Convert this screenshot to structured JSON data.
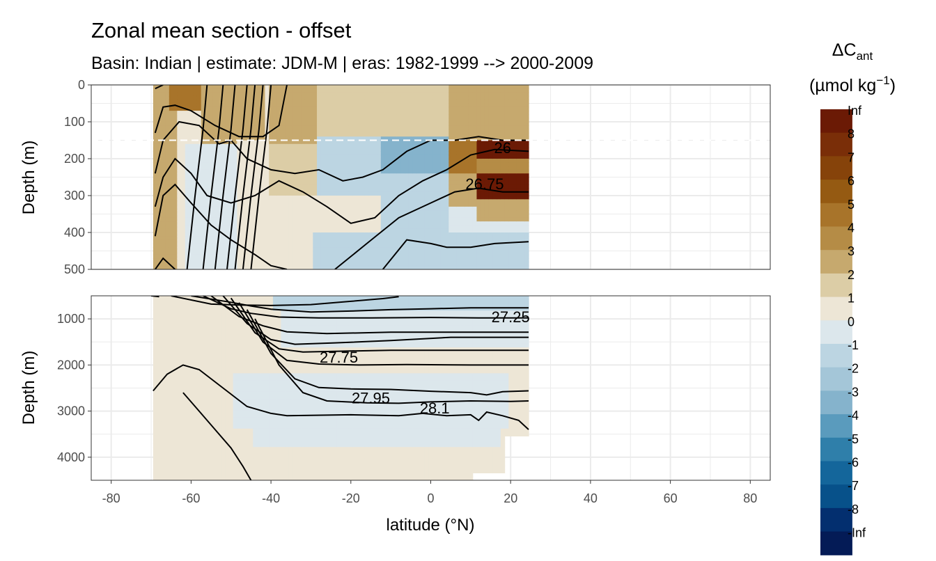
{
  "title": "Zonal mean section - offset",
  "subtitle": "Basin: Indian | estimate: JDM-M | eras: 1982-1999 --> 2000-2009",
  "chart_data": {
    "type": "heatmap",
    "description_kind": "filled contour ocean section with isopycnal contour lines",
    "xlabel": "latitude (°N)",
    "ylabel": "Depth (m)",
    "xlim": [
      -85,
      85
    ],
    "x_ticks": [
      -80,
      -60,
      -40,
      -20,
      0,
      20,
      40,
      60,
      80
    ],
    "x_tick_labels": [
      "-80",
      "-60",
      "-40",
      "-20",
      "0",
      "20",
      "40",
      "60",
      "80"
    ],
    "data_extent_lat": [
      -69.5,
      24.5
    ],
    "panels": [
      {
        "name": "upper",
        "ylim": [
          500,
          0
        ],
        "y_ticks": [
          0,
          100,
          200,
          300,
          400,
          500
        ],
        "y_tick_labels": [
          "0",
          "100",
          "200",
          "300",
          "400",
          "500"
        ],
        "reference_line_depth": 150,
        "contour_labels": [
          {
            "text": "26",
            "lat": 18,
            "depth": 185
          },
          {
            "text": "26.75",
            "lat": 13.5,
            "depth": 283
          }
        ]
      },
      {
        "name": "lower",
        "ylim": [
          4500,
          500
        ],
        "y_ticks": [
          1000,
          2000,
          3000,
          4000
        ],
        "y_tick_labels": [
          "1000",
          "2000",
          "3000",
          "4000"
        ],
        "contour_labels": [
          {
            "text": "27.25",
            "lat": 20,
            "depth": 1070
          },
          {
            "text": "27.75",
            "lat": -23,
            "depth": 1950
          },
          {
            "text": "27.95",
            "lat": -15,
            "depth": 2830
          },
          {
            "text": "28.1",
            "lat": 1,
            "depth": 3050
          }
        ]
      }
    ],
    "legend": {
      "title_main": "ΔC",
      "title_sub": "ant",
      "unit_main": "(µmol kg",
      "unit_sup": "−1",
      "unit_close": ")",
      "levels": [
        "Inf",
        "8",
        "7",
        "6",
        "5",
        "4",
        "3",
        "2",
        "1",
        "0",
        "-1",
        "-2",
        "-3",
        "-4",
        "-5",
        "-6",
        "-7",
        "-8",
        "-Inf"
      ],
      "colors": [
        "#6b1a05",
        "#7a2e08",
        "#86430a",
        "#955a12",
        "#a8742a",
        "#b58c46",
        "#c6a96e",
        "#dccda6",
        "#ede6d6",
        "#dce7ec",
        "#bcd5e2",
        "#a4c6d8",
        "#85b3cc",
        "#5a9bbd",
        "#2f7faa",
        "#14669b",
        "#07518a",
        "#032f6f",
        "#041b56"
      ]
    }
  }
}
